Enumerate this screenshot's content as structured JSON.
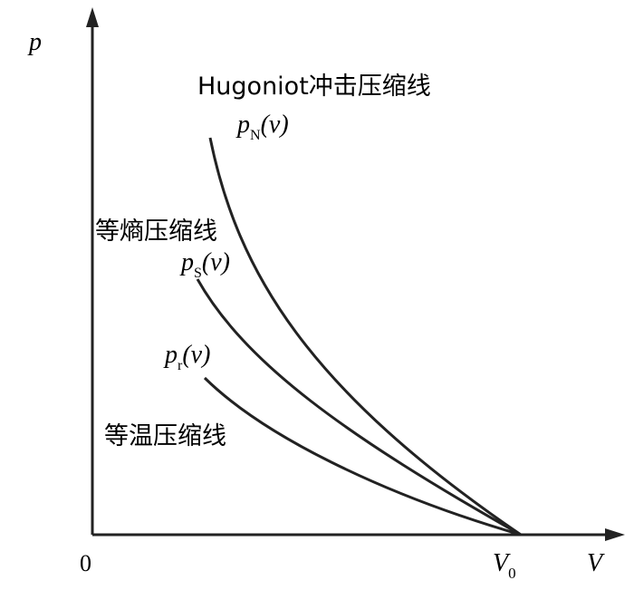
{
  "axes": {
    "y_label": "p",
    "x_label": "V",
    "origin": "0",
    "v0": {
      "symbol": "V",
      "subscript": "0"
    }
  },
  "curves": [
    {
      "name": "Hugoniot冲击压缩线",
      "symbol": "p",
      "subscript": "N",
      "argument": "(v)"
    },
    {
      "name": "等熵压缩线",
      "symbol": "p",
      "subscript": "S",
      "argument": "(v)"
    },
    {
      "name": "等温压缩线",
      "symbol": "p",
      "subscript": "r",
      "argument": "(v)"
    }
  ]
}
